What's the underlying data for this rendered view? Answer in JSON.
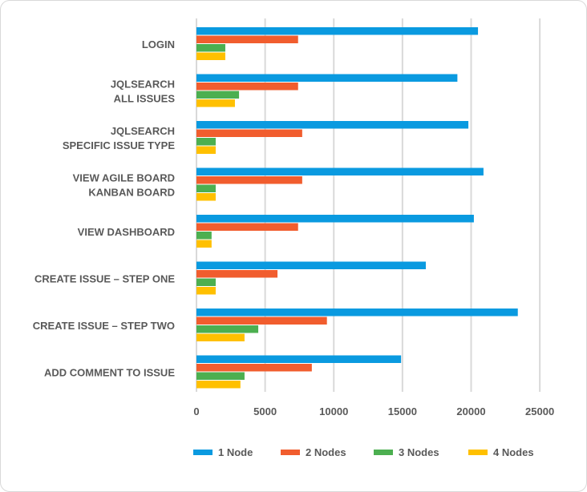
{
  "chart_data": {
    "type": "bar",
    "orientation": "horizontal",
    "categories": [
      [
        "LOGIN"
      ],
      [
        "JQLSEARCH",
        "ALL ISSUES"
      ],
      [
        "JQLSEARCH",
        "SPECIFIC ISSUE TYPE"
      ],
      [
        "VIEW AGILE BOARD",
        "KANBAN BOARD"
      ],
      [
        "VIEW DASHBOARD"
      ],
      [
        "CREATE ISSUE – STEP ONE"
      ],
      [
        "CREATE ISSUE – STEP TWO"
      ],
      [
        "ADD COMMENT TO ISSUE"
      ]
    ],
    "series": [
      {
        "name": "1 Node",
        "color": "#0a9ae0",
        "values": [
          20500,
          19000,
          19800,
          20900,
          20200,
          16700,
          23400,
          14900
        ]
      },
      {
        "name": "2 Nodes",
        "color": "#f15d2e",
        "values": [
          7400,
          7400,
          7700,
          7700,
          7400,
          5900,
          9500,
          8400
        ]
      },
      {
        "name": "3 Nodes",
        "color": "#4caf50",
        "values": [
          2100,
          3100,
          1400,
          1400,
          1100,
          1400,
          4500,
          3500
        ]
      },
      {
        "name": "4 Nodes",
        "color": "#ffc000",
        "values": [
          2100,
          2800,
          1400,
          1400,
          1100,
          1400,
          3500,
          3200
        ]
      }
    ],
    "xticks": [
      0,
      5000,
      10000,
      15000,
      20000,
      25000
    ],
    "xlim": [
      0,
      27000
    ],
    "grid": true,
    "legend_position": "bottom",
    "title": "",
    "xlabel": "",
    "ylabel": ""
  }
}
